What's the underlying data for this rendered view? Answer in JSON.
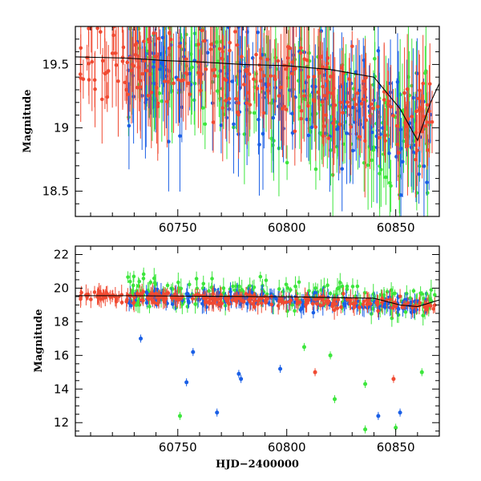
{
  "colors": {
    "red": "#f04a32",
    "blue": "#1a5fe6",
    "green": "#3de63d",
    "model": "#000000"
  },
  "chart_data": [
    {
      "type": "scatter",
      "panel": "top",
      "xlabel": "",
      "ylabel": "Magnitude",
      "xlim": [
        60703,
        60870
      ],
      "ylim": [
        19.8,
        18.3
      ],
      "y_inverted": true,
      "xticks": [
        60750,
        60800,
        60850
      ],
      "xtick_labels": [
        "60750",
        "60800",
        "60850"
      ],
      "yticks": [
        18.5,
        19,
        19.5
      ],
      "ytick_labels": [
        "18.5",
        "19",
        "19.5"
      ],
      "grid": false,
      "model_line": {
        "x": [
          60703,
          60727,
          60745,
          60760,
          60780,
          60800,
          60820,
          60840,
          60852,
          60860,
          60866,
          60870
        ],
        "y": [
          19.56,
          19.55,
          19.53,
          19.52,
          19.5,
          19.49,
          19.46,
          19.4,
          19.15,
          18.9,
          19.2,
          19.35
        ]
      },
      "series": [
        {
          "color_key": "red",
          "x_range": [
            60705,
            60868
          ],
          "y_base": [
            19.55,
            19.45,
            19.35,
            19.0
          ],
          "scatter": 0.35,
          "count": 260
        },
        {
          "color_key": "blue",
          "x_range": [
            60727,
            60866
          ],
          "y_base": [
            19.5,
            19.4,
            19.2,
            18.9
          ],
          "scatter": 0.45,
          "count": 200
        },
        {
          "color_key": "green",
          "x_range": [
            60727,
            60868
          ],
          "y_base": [
            19.5,
            19.4,
            19.2,
            18.9
          ],
          "scatter": 0.5,
          "count": 220
        }
      ]
    },
    {
      "type": "scatter",
      "panel": "bottom",
      "xlabel": "HJD−2400000",
      "ylabel": "Magnitude",
      "xlim": [
        60703,
        60870
      ],
      "ylim": [
        22.5,
        11.2
      ],
      "y_inverted": true,
      "xticks": [
        60750,
        60800,
        60850
      ],
      "xtick_labels": [
        "60750",
        "60800",
        "60850"
      ],
      "yticks": [
        12,
        14,
        16,
        18,
        20,
        22
      ],
      "ytick_labels": [
        "12",
        "14",
        "16",
        "18",
        "20",
        "22"
      ],
      "grid": false,
      "model_line": {
        "x": [
          60703,
          60727,
          60760,
          60800,
          60840,
          60852,
          60860,
          60870
        ],
        "y": [
          19.55,
          19.55,
          19.52,
          19.49,
          19.4,
          19.0,
          18.9,
          19.3
        ]
      },
      "series": [
        {
          "color_key": "red",
          "x_range": [
            60705,
            60868
          ],
          "y_base": [
            19.5,
            19.4,
            19.2,
            18.9
          ],
          "scatter": 0.35,
          "count": 260
        },
        {
          "color_key": "blue",
          "x_range": [
            60727,
            60866
          ],
          "y_base": [
            19.5,
            19.4,
            19.2,
            18.9
          ],
          "scatter": 0.45,
          "count": 200
        },
        {
          "color_key": "green",
          "x_range": [
            60727,
            60868
          ],
          "y_base": [
            19.9,
            19.7,
            19.5,
            19.2
          ],
          "scatter": 0.9,
          "count": 240
        }
      ],
      "outliers": [
        {
          "series": "green",
          "x": 60751,
          "y": 12.4
        },
        {
          "series": "blue",
          "x": 60768,
          "y": 12.6
        },
        {
          "series": "blue",
          "x": 60754,
          "y": 14.4
        },
        {
          "series": "blue",
          "x": 60778,
          "y": 14.9
        },
        {
          "series": "blue",
          "x": 60779,
          "y": 14.6
        },
        {
          "series": "blue",
          "x": 60797,
          "y": 15.2
        },
        {
          "series": "blue",
          "x": 60733,
          "y": 17.0
        },
        {
          "series": "blue",
          "x": 60757,
          "y": 16.2
        },
        {
          "series": "red",
          "x": 60813,
          "y": 15.0
        },
        {
          "series": "green",
          "x": 60822,
          "y": 13.4
        },
        {
          "series": "green",
          "x": 60836,
          "y": 11.6
        },
        {
          "series": "green",
          "x": 60836,
          "y": 14.3
        },
        {
          "series": "blue",
          "x": 60842,
          "y": 12.4
        },
        {
          "series": "red",
          "x": 60849,
          "y": 14.6
        },
        {
          "series": "green",
          "x": 60850,
          "y": 11.7
        },
        {
          "series": "blue",
          "x": 60852,
          "y": 12.6
        },
        {
          "series": "green",
          "x": 60862,
          "y": 15.0
        },
        {
          "series": "green",
          "x": 60808,
          "y": 16.5
        },
        {
          "series": "green",
          "x": 60820,
          "y": 16.0
        }
      ]
    }
  ]
}
